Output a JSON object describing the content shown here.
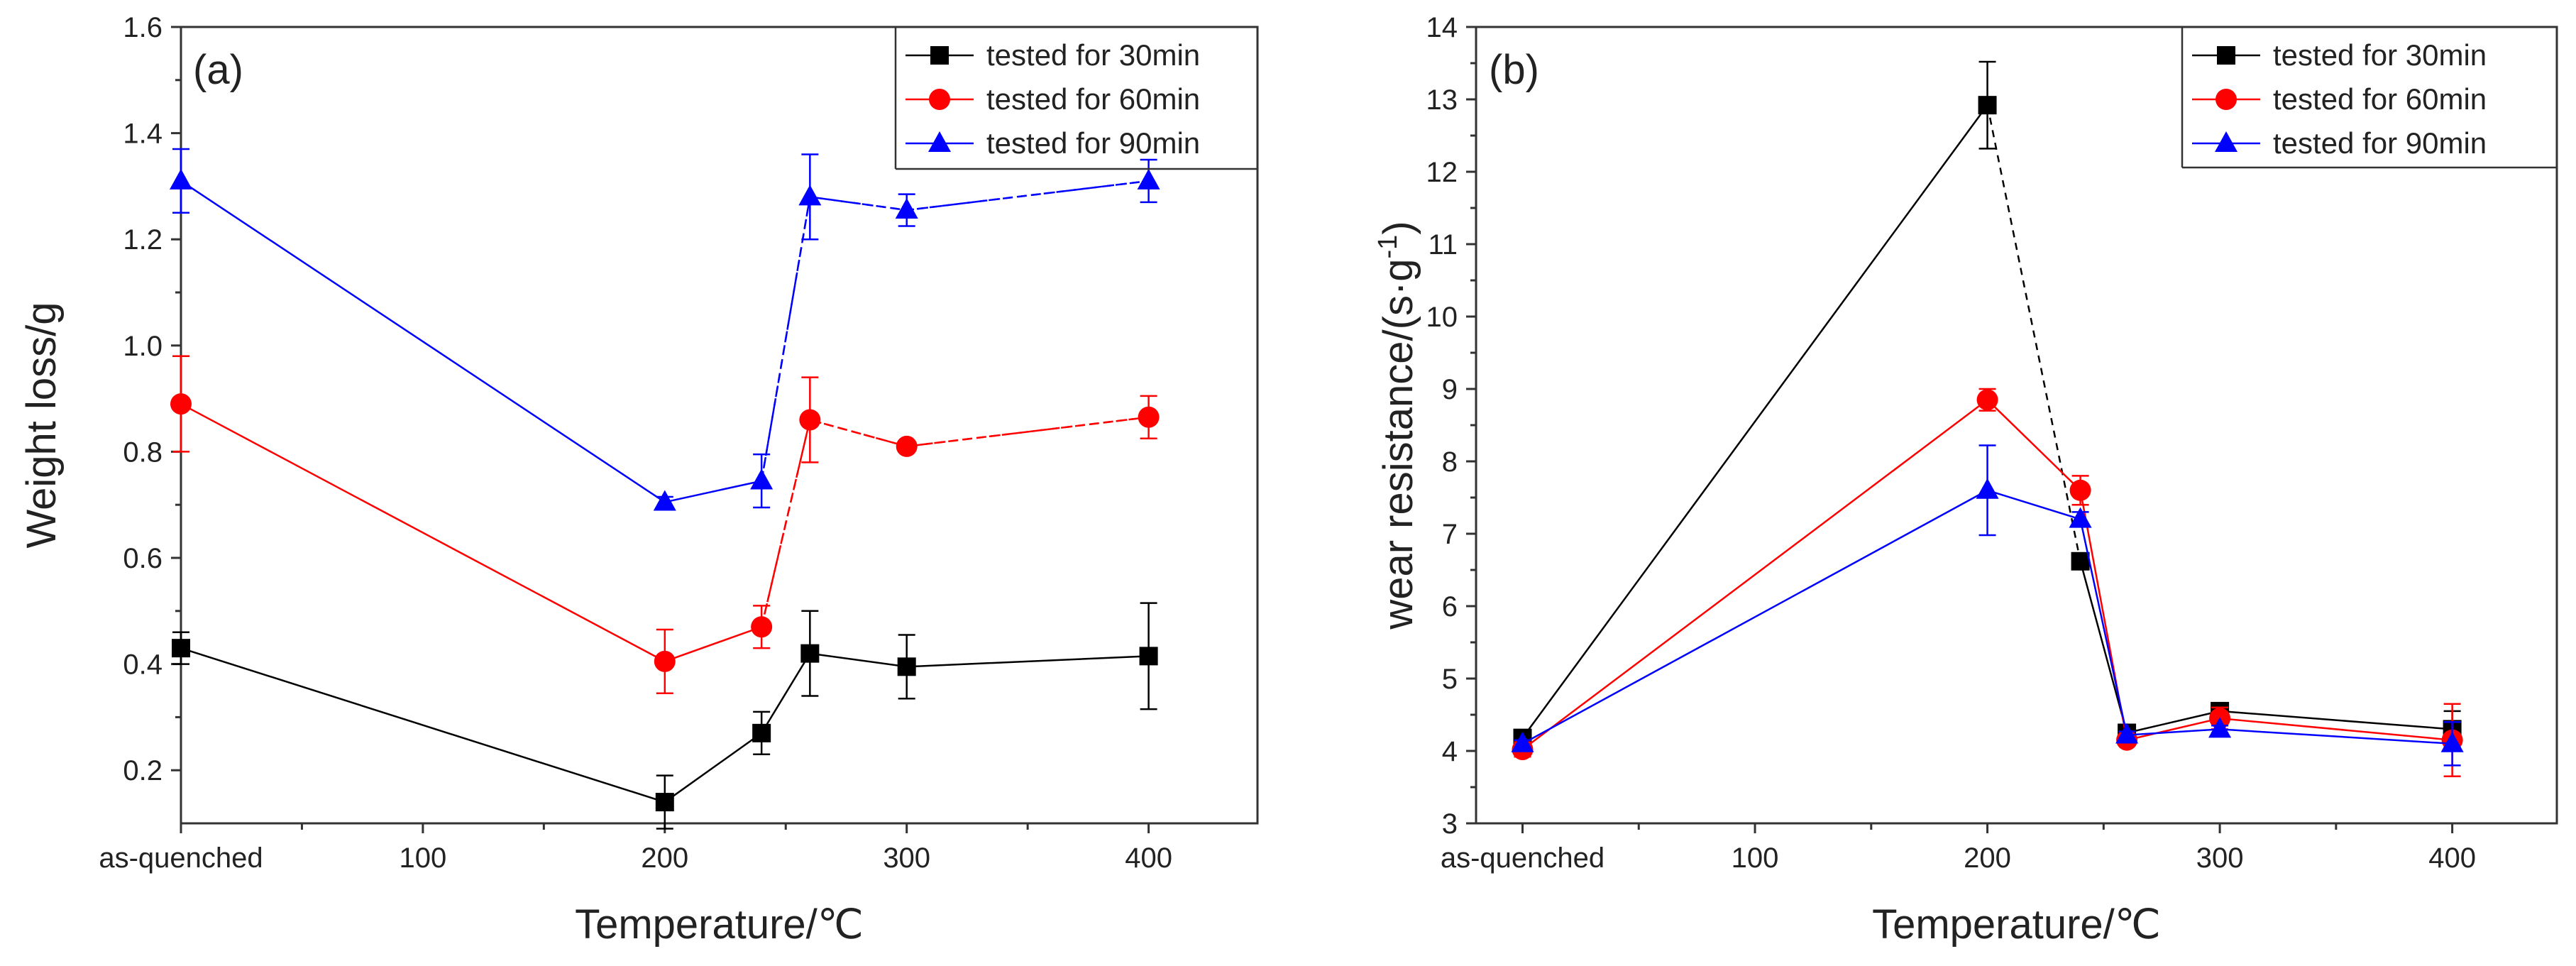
{
  "chart_data": [
    {
      "type": "line",
      "panel_label": "(a)",
      "xlabel": "Temperature/℃",
      "ylabel": "Weight loss/g",
      "xlim": [
        0,
        445
      ],
      "ylim": [
        0.1,
        1.6
      ],
      "x_ticks": [
        {
          "value": 0,
          "label": "as-quenched"
        },
        {
          "value": 100,
          "label": "100"
        },
        {
          "value": 200,
          "label": "200"
        },
        {
          "value": 300,
          "label": "300"
        },
        {
          "value": 400,
          "label": "400"
        }
      ],
      "y_ticks": [
        {
          "value": 0.2,
          "label": "0.2"
        },
        {
          "value": 0.4,
          "label": "0.4"
        },
        {
          "value": 0.6,
          "label": "0.6"
        },
        {
          "value": 0.8,
          "label": "0.8"
        },
        {
          "value": 1.0,
          "label": "1.0"
        },
        {
          "value": 1.2,
          "label": "1.2"
        },
        {
          "value": 1.4,
          "label": "1.4"
        },
        {
          "value": 1.6,
          "label": "1.6"
        }
      ],
      "legend_position": "top-right",
      "series": [
        {
          "name": "tested for 30min",
          "color": "#000000",
          "marker": "square",
          "x": [
            0,
            200,
            240,
            260,
            300,
            400
          ],
          "y": [
            0.43,
            0.14,
            0.27,
            0.42,
            0.395,
            0.415
          ],
          "err": [
            0.03,
            0.05,
            0.04,
            0.08,
            0.06,
            0.1
          ]
        },
        {
          "name": "tested for 60min",
          "color": "#ff0000",
          "marker": "circle",
          "x": [
            0,
            200,
            240,
            260,
            300,
            400
          ],
          "y": [
            0.89,
            0.405,
            0.47,
            0.86,
            0.81,
            0.865
          ],
          "err": [
            0.09,
            0.06,
            0.04,
            0.08,
            0.01,
            0.04
          ]
        },
        {
          "name": "tested for 90min",
          "color": "#0000ff",
          "marker": "triangle",
          "x": [
            0,
            200,
            240,
            260,
            300,
            400
          ],
          "y": [
            1.31,
            0.705,
            0.745,
            1.28,
            1.255,
            1.31
          ],
          "err": [
            0.06,
            0.01,
            0.05,
            0.08,
            0.03,
            0.04
          ]
        }
      ]
    },
    {
      "type": "line",
      "panel_label": "(b)",
      "xlabel": "Temperature/℃",
      "ylabel": "wear resistance/(s·g",
      "ylabel_superscript": "-1",
      "ylabel_close": ")",
      "xlim": [
        -20,
        445
      ],
      "ylim": [
        3,
        14
      ],
      "x_ticks": [
        {
          "value": 0,
          "label": "as-quenched"
        },
        {
          "value": 100,
          "label": "100"
        },
        {
          "value": 200,
          "label": "200"
        },
        {
          "value": 300,
          "label": "300"
        },
        {
          "value": 400,
          "label": "400"
        }
      ],
      "y_ticks": [
        {
          "value": 3,
          "label": "3"
        },
        {
          "value": 4,
          "label": "4"
        },
        {
          "value": 5,
          "label": "5"
        },
        {
          "value": 6,
          "label": "6"
        },
        {
          "value": 7,
          "label": "7"
        },
        {
          "value": 8,
          "label": "8"
        },
        {
          "value": 9,
          "label": "9"
        },
        {
          "value": 10,
          "label": "10"
        },
        {
          "value": 11,
          "label": "11"
        },
        {
          "value": 12,
          "label": "12"
        },
        {
          "value": 13,
          "label": "13"
        },
        {
          "value": 14,
          "label": "14"
        }
      ],
      "legend_position": "top-right",
      "series": [
        {
          "name": "tested for 30min",
          "color": "#000000",
          "marker": "square",
          "x": [
            0,
            200,
            240,
            260,
            300,
            400
          ],
          "y": [
            4.18,
            12.92,
            6.62,
            4.25,
            4.55,
            4.3
          ],
          "err": [
            0.1,
            0.6,
            0.1,
            0.1,
            0.1,
            0.25
          ]
        },
        {
          "name": "tested for 60min",
          "color": "#ff0000",
          "marker": "circle",
          "x": [
            0,
            200,
            240,
            260,
            300,
            400
          ],
          "y": [
            4.02,
            8.85,
            7.6,
            4.15,
            4.45,
            4.15
          ],
          "err": [
            0.1,
            0.15,
            0.2,
            0.05,
            0.15,
            0.5
          ]
        },
        {
          "name": "tested for 90min",
          "color": "#0000ff",
          "marker": "triangle",
          "x": [
            0,
            200,
            240,
            260,
            300,
            400
          ],
          "y": [
            4.1,
            7.6,
            7.2,
            4.22,
            4.3,
            4.1
          ],
          "err": [
            0.05,
            0.62,
            0.1,
            0.05,
            0.05,
            0.3
          ]
        }
      ]
    }
  ]
}
